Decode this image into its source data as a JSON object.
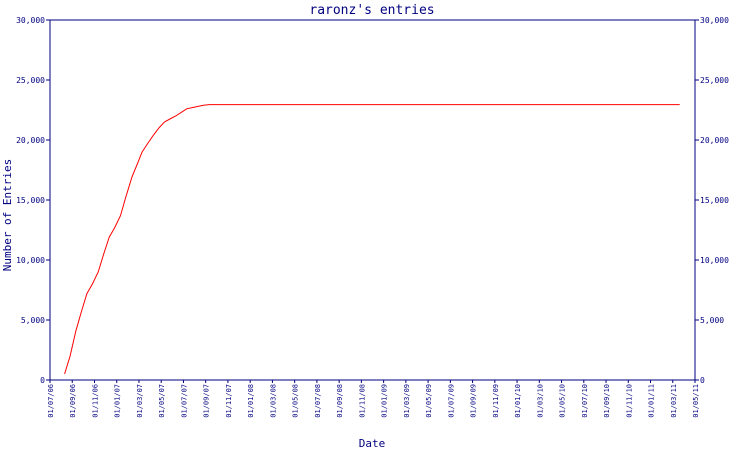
{
  "chart_data": {
    "type": "line",
    "title": "raronz's entries",
    "xlabel": "Date",
    "ylabel": "Number of Entries",
    "ylim": [
      0,
      30000
    ],
    "yticks": [
      0,
      5000,
      10000,
      15000,
      20000,
      25000,
      30000
    ],
    "ytick_labels": [
      "0",
      "5,000",
      "10,000",
      "15,000",
      "20,000",
      "25,000",
      "30,000"
    ],
    "xlim": [
      "2006-07-01",
      "2011-05-01"
    ],
    "xtick_labels": [
      "01/07/06",
      "01/09/06",
      "01/11/06",
      "01/01/07",
      "01/03/07",
      "01/05/07",
      "01/07/07",
      "01/09/07",
      "01/11/07",
      "01/01/08",
      "01/03/08",
      "01/05/08",
      "01/07/08",
      "01/09/08",
      "01/11/08",
      "01/01/09",
      "01/03/09",
      "01/05/09",
      "01/07/09",
      "01/09/09",
      "01/11/09",
      "01/01/10",
      "01/03/10",
      "01/05/10",
      "01/07/10",
      "01/09/10",
      "01/11/10",
      "01/01/11",
      "01/03/11",
      "01/05/11"
    ],
    "grid": false,
    "line_color": "#ff0000",
    "axis_color": "#000080",
    "series": [
      {
        "x": [
          "2006-08-10",
          "2006-08-25",
          "2006-09-10",
          "2006-09-25",
          "2006-10-10",
          "2006-10-25",
          "2006-11-10",
          "2006-11-25",
          "2006-12-10",
          "2006-12-25",
          "2007-01-10",
          "2007-01-25",
          "2007-02-10",
          "2007-02-25",
          "2007-03-10",
          "2007-03-25",
          "2007-04-10",
          "2007-04-25",
          "2007-05-10",
          "2007-05-25",
          "2007-06-10",
          "2007-06-25",
          "2007-07-10",
          "2007-07-25",
          "2007-08-10",
          "2007-08-25",
          "2007-09-10",
          "2007-10-10",
          "2008-01-01",
          "2009-01-01",
          "2010-01-01",
          "2011-01-01",
          "2011-03-20"
        ],
        "values": [
          500,
          2000,
          4100,
          5700,
          7200,
          8000,
          9000,
          10500,
          11900,
          12700,
          13700,
          15300,
          16900,
          18000,
          19000,
          19700,
          20400,
          21000,
          21500,
          21750,
          22000,
          22300,
          22600,
          22700,
          22800,
          22900,
          22950,
          22950,
          22950,
          22950,
          22950,
          22950,
          22950
        ]
      }
    ]
  }
}
